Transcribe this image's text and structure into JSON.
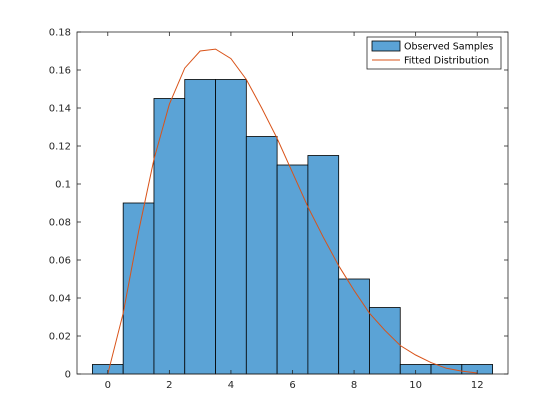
{
  "chart_data": {
    "type": "bar",
    "title": "",
    "xlabel": "",
    "ylabel": "",
    "xlim": [
      -1,
      13
    ],
    "ylim": [
      0,
      0.18
    ],
    "grid": false,
    "legend_position": "top-right",
    "x_ticks": [
      0,
      2,
      4,
      6,
      8,
      10,
      12
    ],
    "x_tick_labels": [
      "0",
      "2",
      "4",
      "6",
      "8",
      "10",
      "12"
    ],
    "y_ticks": [
      0,
      0.02,
      0.04,
      0.06,
      0.08,
      0.1,
      0.12,
      0.14,
      0.16,
      0.18
    ],
    "y_tick_labels": [
      "0",
      "0.02",
      "0.04",
      "0.06",
      "0.08",
      "0.1",
      "0.12",
      "0.14",
      "0.16",
      "0.18"
    ],
    "series": [
      {
        "name": "Observed Samples",
        "type": "histogram",
        "bin_edges": [
          -0.5,
          0.5,
          1.5,
          2.5,
          3.5,
          4.5,
          5.5,
          6.5,
          7.5,
          8.5,
          9.5,
          10.5,
          11.5,
          12.5
        ],
        "values": [
          0.005,
          0.09,
          0.145,
          0.155,
          0.155,
          0.125,
          0.11,
          0.115,
          0.05,
          0.035,
          0.005,
          0.005,
          0.005
        ],
        "color": "#5BA3D6",
        "edge_color": "#000000"
      },
      {
        "name": "Fitted Distribution",
        "type": "line",
        "x": [
          0,
          0.5,
          1,
          1.5,
          2,
          2.5,
          3,
          3.5,
          4,
          4.5,
          5,
          5.5,
          6,
          6.5,
          7,
          7.5,
          8,
          8.5,
          9,
          9.5,
          10,
          10.5,
          11,
          11.5,
          12
        ],
        "y": [
          0,
          0.032,
          0.075,
          0.113,
          0.142,
          0.161,
          0.17,
          0.171,
          0.166,
          0.155,
          0.14,
          0.124,
          0.106,
          0.088,
          0.072,
          0.057,
          0.044,
          0.032,
          0.023,
          0.015,
          0.01,
          0.006,
          0.003,
          0.0015,
          0.0005
        ],
        "color": "#D95319"
      }
    ]
  }
}
